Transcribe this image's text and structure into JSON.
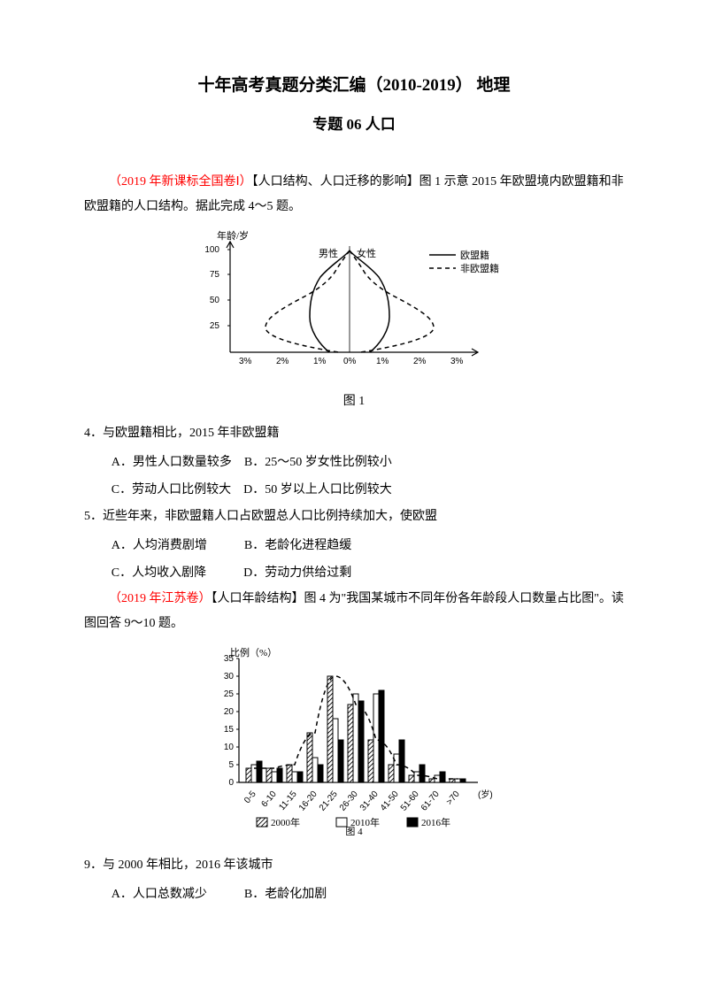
{
  "titles": {
    "main": "十年高考真题分类汇编（2010-2019）  地理",
    "sub": "专题 06 人口"
  },
  "section1": {
    "source": "（2019 年新课标全国卷Ⅰ）",
    "tag": "【人口结构、人口迁移的影响】",
    "intro": "图 1 示意 2015 年欧盟境内欧盟籍和非欧盟籍的人口结构。据此完成 4～5 题。",
    "chart1": {
      "caption": "图 1",
      "y_label": "年龄/岁",
      "y_ticks": [
        "25",
        "50",
        "75",
        "100"
      ],
      "x_ticks_left": [
        "3%",
        "2%",
        "1%"
      ],
      "x_ticks_right": [
        "1%",
        "2%",
        "3%"
      ],
      "x_zero": "0%",
      "male_label": "男性",
      "female_label": "女性",
      "legend_solid": "欧盟籍",
      "legend_dash": "非欧盟籍",
      "colors": {
        "axis": "#000000",
        "line": "#000000",
        "bg": "#ffffff"
      }
    },
    "q4": {
      "stem": "4．与欧盟籍相比，2015 年非欧盟籍",
      "A": "A．男性人口数量较多",
      "B": "B．25～50 岁女性比例较小",
      "C": "C．劳动人口比例较大",
      "D": "D．50 岁以上人口比例较大"
    },
    "q5": {
      "stem": "5．近些年来，非欧盟籍人口占欧盟总人口比例持续加大，使欧盟",
      "A": "A．人均消费剧增",
      "B": "B．老龄化进程趋缓",
      "C": "C．人均收入剧降",
      "D": "D．劳动力供给过剩"
    }
  },
  "section2": {
    "source": "（2019 年江苏卷）",
    "tag": "【人口年龄结构】",
    "intro": "图 4 为\"我国某城市不同年份各年龄段人口数量占比图\"。读图回答 9～10 题。",
    "chart2": {
      "caption": "图 4",
      "y_label": "比例（%）",
      "y_ticks": [
        "0",
        "5",
        "10",
        "15",
        "20",
        "25",
        "30",
        "35"
      ],
      "x_ticks": [
        "0-5",
        "6-10",
        "11-15",
        "16-20",
        "21-25",
        "26-30",
        "31-40",
        "41-50",
        "51-60",
        "61-70",
        ">70"
      ],
      "x_unit": "(岁)",
      "legend_2000": "2000年",
      "legend_2010": "2010年",
      "legend_2016": "2016年",
      "series_2000": [
        4,
        4,
        5,
        14,
        30,
        22,
        12,
        5,
        2,
        1,
        1
      ],
      "series_2010": [
        5,
        3,
        3,
        7,
        18,
        25,
        25,
        8,
        3,
        2,
        1
      ],
      "series_2016": [
        6,
        4,
        3,
        5,
        12,
        23,
        26,
        12,
        5,
        3,
        1
      ],
      "colors": {
        "axis": "#000000",
        "bar_solid": "#000000",
        "bar_outline": "#ffffff",
        "bg": "#ffffff"
      }
    },
    "q9": {
      "stem": "9．与 2000 年相比，2016 年该城市",
      "A": "A．人口总数减少",
      "B": "B．老龄化加剧"
    }
  }
}
